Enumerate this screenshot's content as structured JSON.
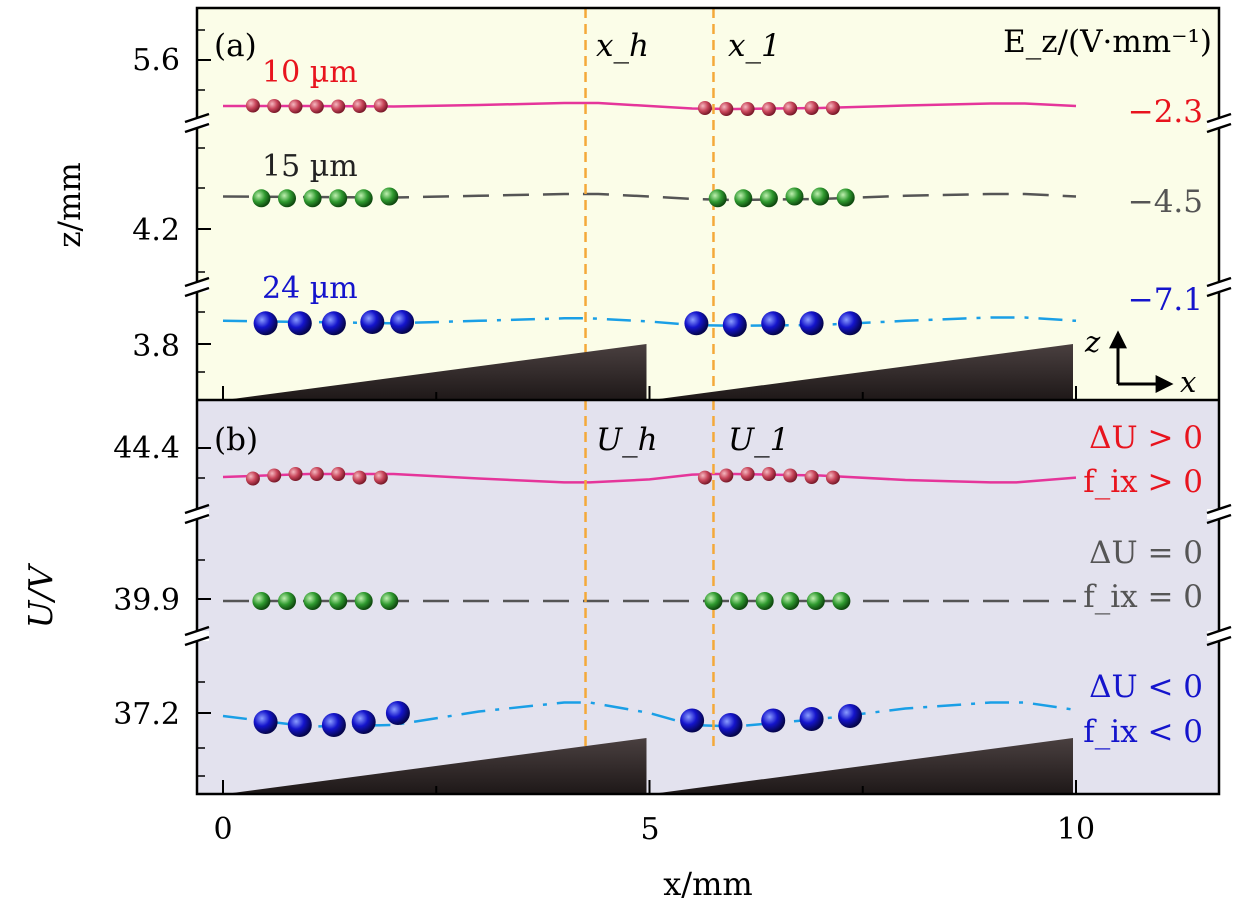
{
  "chart_data": [
    {
      "type": "line",
      "panel_label": "(a)",
      "ylabel": "z/mm",
      "y_ticks": [
        "5.6",
        "4.2",
        "3.8"
      ],
      "corner_label": "E_z/(V·mm⁻¹)",
      "marker_labels": [
        "x_h",
        "x_1"
      ],
      "marker_x": [
        4.25,
        5.75
      ],
      "axis_glyph": {
        "up": "z",
        "right": "x"
      },
      "colors": {
        "background": "#fbfde8",
        "marker_line": "#f4a93a",
        "sawtooth": "#2b2424"
      },
      "series": [
        {
          "name": "10 µm",
          "field_label": "−2.3",
          "color": "#e5359a",
          "label_color": "#e8141e",
          "dash": "solid",
          "x": [
            0,
            1,
            2,
            3,
            4,
            4.4,
            5,
            5.5,
            6,
            7,
            8,
            9,
            9.4,
            10
          ],
          "y": [
            0.0,
            0.0,
            -0.02,
            0.04,
            0.12,
            0.12,
            0.0,
            -0.1,
            -0.12,
            -0.08,
            0.02,
            0.1,
            0.1,
            0.0
          ],
          "ion_x": [
            0.35,
            0.6,
            0.85,
            1.1,
            1.35,
            1.6,
            1.85,
            5.65,
            5.9,
            6.15,
            6.4,
            6.65,
            6.9,
            7.15
          ],
          "ion_y": [
            0.02,
            0.0,
            -0.02,
            -0.02,
            -0.02,
            0.0,
            0.02,
            -0.08,
            -0.12,
            -0.12,
            -0.12,
            -0.1,
            -0.08,
            -0.08
          ]
        },
        {
          "name": "15 µm",
          "field_label": "−4.5",
          "color": "#555555",
          "label_color": "#222222",
          "dash": "dashed",
          "x": [
            0,
            1,
            2,
            3,
            4,
            4.4,
            5,
            5.5,
            6,
            7,
            8,
            9,
            9.4,
            10
          ],
          "y": [
            0.02,
            0.0,
            -0.02,
            0.05,
            0.12,
            0.12,
            0.02,
            -0.08,
            -0.12,
            -0.08,
            0.05,
            0.12,
            0.12,
            0.02
          ],
          "ion_x": [
            0.45,
            0.75,
            1.05,
            1.35,
            1.65,
            1.95,
            5.8,
            6.1,
            6.4,
            6.7,
            7.0,
            7.3
          ],
          "ion_y": [
            -0.05,
            -0.05,
            -0.05,
            -0.05,
            -0.05,
            0.02,
            -0.05,
            -0.05,
            -0.05,
            0.02,
            0.02,
            -0.02
          ]
        },
        {
          "name": "24 µm",
          "field_label": "−7.1",
          "color": "#1a9fe6",
          "label_color": "#1414cc",
          "dash": "dashdot",
          "x": [
            0,
            1,
            2,
            3,
            4,
            4.3,
            5,
            5.5,
            6,
            7,
            8,
            9,
            9.4,
            10
          ],
          "y": [
            0.05,
            0.0,
            -0.05,
            0.05,
            0.15,
            0.15,
            0.02,
            -0.12,
            -0.15,
            -0.12,
            0.05,
            0.18,
            0.18,
            0.05
          ],
          "ion_x": [
            0.5,
            0.9,
            1.3,
            1.75,
            2.1,
            5.55,
            6.0,
            6.45,
            6.9,
            7.35
          ],
          "ion_y": [
            -0.05,
            -0.05,
            -0.05,
            0.0,
            0.0,
            -0.05,
            -0.12,
            -0.05,
            -0.05,
            -0.05
          ]
        }
      ]
    },
    {
      "type": "line",
      "panel_label": "(b)",
      "ylabel": "U/V",
      "y_ticks": [
        "44.4",
        "39.9",
        "37.2"
      ],
      "marker_labels": [
        "U_h",
        "U_1"
      ],
      "marker_x": [
        4.25,
        5.75
      ],
      "xlabel": "x/mm",
      "x_ticks": [
        "0",
        "5",
        "10"
      ],
      "xlim": [
        -0.3,
        11.7
      ],
      "colors": {
        "background": "#e3e2ee",
        "marker_line": "#f4a93a",
        "sawtooth": "#2b2424"
      },
      "series": [
        {
          "name": "ΔU > 0",
          "labels": [
            "ΔU > 0",
            "f_ix > 0"
          ],
          "color": "#e5359a",
          "label_color": "#e8141e",
          "dash": "solid",
          "x": [
            0,
            1,
            2,
            3,
            4,
            4.3,
            5,
            5.5,
            5.75,
            6,
            7,
            8,
            9,
            9.3,
            10
          ],
          "y": [
            0.0,
            0.1,
            0.1,
            -0.05,
            -0.18,
            -0.18,
            -0.08,
            0.08,
            0.1,
            0.1,
            0.05,
            -0.1,
            -0.18,
            -0.18,
            -0.02
          ],
          "ion_x": [
            0.35,
            0.6,
            0.85,
            1.1,
            1.35,
            1.6,
            1.85,
            5.65,
            5.9,
            6.15,
            6.4,
            6.65,
            6.9,
            7.15
          ],
          "ion_y": [
            -0.05,
            0.05,
            0.1,
            0.1,
            0.1,
            -0.02,
            -0.02,
            -0.02,
            0.05,
            0.1,
            0.1,
            0.05,
            0.0,
            -0.02
          ]
        },
        {
          "name": "ΔU = 0",
          "labels": [
            "ΔU = 0",
            "f_ix = 0"
          ],
          "color": "#555555",
          "label_color": "#555555",
          "dash": "dashed",
          "x": [
            0,
            10
          ],
          "y": [
            0,
            0
          ],
          "ion_x": [
            0.45,
            0.75,
            1.05,
            1.35,
            1.65,
            1.95,
            5.75,
            6.05,
            6.35,
            6.65,
            6.95,
            7.25
          ],
          "ion_y": [
            0,
            0,
            0,
            0,
            0,
            0,
            0,
            0,
            0,
            0,
            0,
            0
          ]
        },
        {
          "name": "ΔU < 0",
          "labels": [
            "ΔU < 0",
            "f_ix < 0"
          ],
          "color": "#1a9fe6",
          "label_color": "#1414cc",
          "dash": "dashdot",
          "x": [
            0,
            1,
            2,
            3,
            4,
            4.3,
            5,
            5.5,
            6,
            7,
            8,
            9,
            9.4,
            10
          ],
          "y": [
            0.0,
            -0.35,
            -0.3,
            0.15,
            0.45,
            0.45,
            0.1,
            -0.3,
            -0.35,
            -0.1,
            0.25,
            0.45,
            0.45,
            0.2
          ],
          "ion_x": [
            0.5,
            0.9,
            1.3,
            1.65,
            2.05,
            5.5,
            5.95,
            6.45,
            6.9,
            7.35
          ],
          "ion_y": [
            -0.2,
            -0.3,
            -0.3,
            -0.2,
            0.1,
            -0.15,
            -0.3,
            -0.15,
            -0.1,
            0.0
          ]
        }
      ]
    }
  ]
}
